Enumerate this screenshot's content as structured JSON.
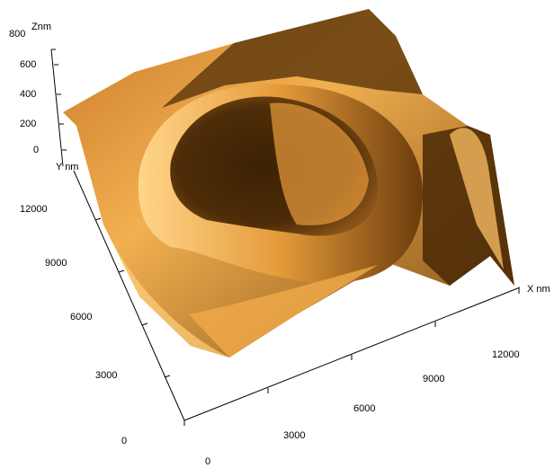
{
  "axes": {
    "z": {
      "label": "Znm",
      "ticks": [
        800,
        600,
        400,
        200,
        0
      ]
    },
    "y": {
      "label": "Y nm",
      "ticks": [
        12000,
        9000,
        6000,
        3000,
        0
      ]
    },
    "x": {
      "label": "X nm",
      "ticks": [
        0,
        3000,
        6000,
        9000,
        12000
      ]
    }
  }
}
